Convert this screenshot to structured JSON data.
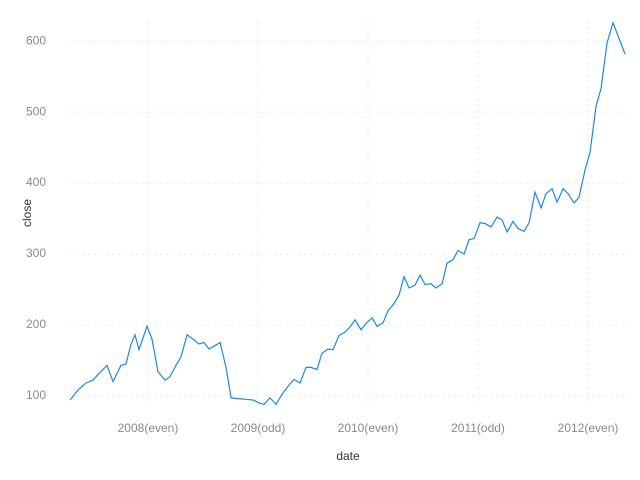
{
  "chart_data": {
    "type": "line",
    "xlabel": "date",
    "ylabel": "close",
    "x": [
      2007.291,
      2007.364,
      2007.436,
      2007.5,
      2007.564,
      2007.627,
      2007.682,
      2007.755,
      2007.8,
      2007.845,
      2007.882,
      2007.918,
      2007.991,
      2008.036,
      2008.091,
      2008.155,
      2008.2,
      2008.255,
      2008.3,
      2008.355,
      2008.409,
      2008.464,
      2008.509,
      2008.555,
      2008.6,
      2008.655,
      2008.709,
      2008.755,
      2008.818,
      2008.891,
      2008.955,
      2009.009,
      2009.055,
      2009.109,
      2009.164,
      2009.227,
      2009.282,
      2009.327,
      2009.382,
      2009.436,
      2009.482,
      2009.536,
      2009.582,
      2009.636,
      2009.682,
      2009.736,
      2009.791,
      2009.836,
      2009.882,
      2009.936,
      2009.982,
      2010.036,
      2010.082,
      2010.136,
      2010.182,
      2010.236,
      2010.282,
      2010.327,
      2010.373,
      2010.427,
      2010.473,
      2010.518,
      2010.573,
      2010.618,
      2010.673,
      2010.718,
      2010.773,
      2010.818,
      2010.873,
      2010.918,
      2010.964,
      2011.018,
      2011.064,
      2011.118,
      2011.173,
      2011.218,
      2011.264,
      2011.318,
      2011.364,
      2011.418,
      2011.464,
      2011.518,
      2011.573,
      2011.618,
      2011.673,
      2011.718,
      2011.773,
      2011.818,
      2011.873,
      2011.918,
      2011.973,
      2012.018,
      2012.073,
      2012.118,
      2012.173,
      2012.227,
      2012.336
    ],
    "series": [
      {
        "name": "close",
        "color": "#1e88e5",
        "values": [
          94,
          108,
          118,
          122,
          133,
          143,
          120,
          143,
          145,
          172,
          186,
          165,
          198,
          180,
          134,
          122,
          127,
          143,
          155,
          186,
          180,
          173,
          175,
          166,
          170,
          175,
          140,
          97,
          96,
          95,
          94,
          90,
          88,
          97,
          88,
          104,
          115,
          123,
          118,
          140,
          140,
          137,
          160,
          166,
          165,
          185,
          190,
          197,
          207,
          193,
          202,
          210,
          198,
          203,
          220,
          230,
          242,
          268,
          252,
          256,
          270,
          257,
          258,
          252,
          258,
          287,
          292,
          305,
          300,
          320,
          322,
          344,
          343,
          338,
          352,
          348,
          331,
          346,
          336,
          332,
          344,
          387,
          365,
          385,
          392,
          373,
          392,
          385,
          372,
          380,
          419,
          443,
          509,
          533,
          598,
          626,
          582
        ]
      }
    ],
    "xlim": [
      2007.291,
      2012.336
    ],
    "xticks": [
      {
        "value": 2008,
        "label": "2008(even)"
      },
      {
        "value": 2009,
        "label": "2009(odd)"
      },
      {
        "value": 2010,
        "label": "2010(even)"
      },
      {
        "value": 2011,
        "label": "2011(odd)"
      },
      {
        "value": 2012,
        "label": "2012(even)"
      }
    ],
    "ylim": [
      87,
      630
    ],
    "yticks": [
      100,
      200,
      300,
      400,
      500,
      600
    ],
    "grid": true
  }
}
